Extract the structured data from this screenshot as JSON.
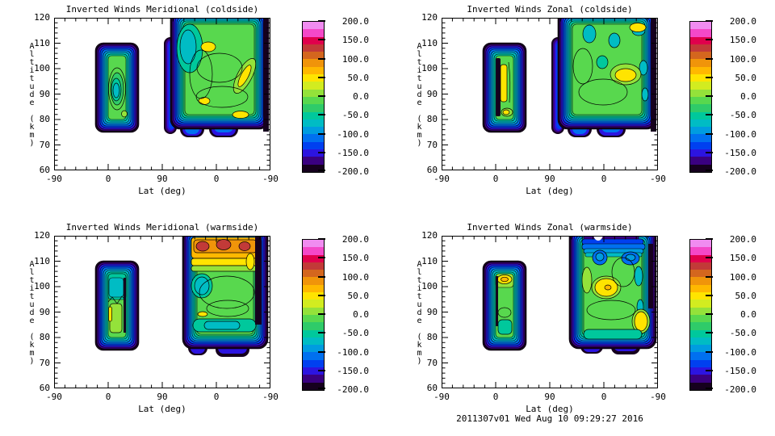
{
  "panels": [
    {
      "title": "Inverted Winds Meridional (coldside)"
    },
    {
      "title": "Inverted Winds Zonal (coldside)"
    },
    {
      "title": "Inverted Winds Meridional (warmside)"
    },
    {
      "title": "Inverted Winds Zonal (warmside)"
    }
  ],
  "axes": {
    "xlabel": "Lat (deg)",
    "ylabel": "Altitude (km)",
    "xticks": [
      "-90",
      "0",
      "90",
      "0",
      "-90"
    ],
    "yticks": [
      "120",
      "110",
      "100",
      "90",
      "80",
      "70",
      "60"
    ]
  },
  "colorbar": {
    "ticks": [
      "200.0",
      "150.0",
      "100.0",
      "50.0",
      "0.0",
      "-50.0",
      "-100.0",
      "-150.0",
      "-200.0"
    ],
    "min": -200,
    "max": 200,
    "palette_bottom_to_top": [
      "#16001E",
      "#3A0080",
      "#2C14E0",
      "#0040F0",
      "#0070F0",
      "#009CE0",
      "#00BCC4",
      "#00C89C",
      "#2FCB69",
      "#58D84E",
      "#94E23A",
      "#D2EC20",
      "#FFE400",
      "#FFB800",
      "#F0940A",
      "#D4661E",
      "#C23A38",
      "#E0004C",
      "#F448C8",
      "#F08CF0"
    ]
  },
  "footer": {
    "timestamp": "2011307v01 Wed Aug 10 09:29:27 2016"
  },
  "chart_data": [
    {
      "type": "contour",
      "title": "Inverted Winds Meridional (coldside)",
      "xlabel": "Lat (deg)",
      "ylabel": "Altitude (km)",
      "x_tick_labels": [
        -90,
        0,
        90,
        0,
        -90
      ],
      "ylim": [
        60,
        120
      ],
      "levels_min": -200,
      "levels_max": 200,
      "level_step": 20,
      "colorbar_ticks": [
        200,
        150,
        100,
        50,
        0,
        -50,
        -100,
        -150,
        -200
      ],
      "regions": [
        {
          "name": "ascending-leg swath",
          "lat_span": "-10 to 50",
          "alt_span": [
            75,
            110
          ],
          "interior_value_est": "-30 to -10",
          "features": [
            "cyan core -80 to -50 near 88-95 km",
            "edge bands falling to below -180"
          ]
        },
        {
          "name": "poleward/descending swath",
          "lat_span": "80 (asc) through 90 to -60 (desc)",
          "alt_span": [
            74,
            120
          ],
          "interior_value_est": "-30 to +10",
          "features": [
            "cyan pocket -70 to -40 upper-left",
            "yellow patches +30 to +60 near 105-110 km and 85-95 km",
            "near -200 dark band at right edge"
          ]
        }
      ]
    },
    {
      "type": "contour",
      "title": "Inverted Winds Zonal (coldside)",
      "xlabel": "Lat (deg)",
      "ylabel": "Altitude (km)",
      "x_tick_labels": [
        -90,
        0,
        90,
        0,
        -90
      ],
      "ylim": [
        60,
        120
      ],
      "levels_min": -200,
      "levels_max": 200,
      "level_step": 20,
      "colorbar_ticks": [
        200,
        150,
        100,
        50,
        0,
        -50,
        -100,
        -150,
        -200
      ],
      "regions": [
        {
          "name": "ascending-leg swath",
          "lat_span": "-10 to 50",
          "alt_span": [
            75,
            110
          ],
          "interior_value_est": "-20 to +10",
          "features": [
            "near -200 black strip on left edge",
            "yellow vertical strip +30 to +60 at 82-100 km",
            "yellow spot +30 to +60 near 82 km"
          ]
        },
        {
          "name": "poleward/descending swath",
          "lat_span": "80 (asc) through 90 to -60 (desc)",
          "alt_span": [
            74,
            120
          ],
          "interior_value_est": "-30 to +10",
          "features": [
            "scattered cyan pockets -70 to -40 above 105 km",
            "yellow patch +30 to +60 near 95-100 km",
            "yellow patch near 115 km"
          ]
        }
      ]
    },
    {
      "type": "contour",
      "title": "Inverted Winds Meridional (warmside)",
      "xlabel": "Lat (deg)",
      "ylabel": "Altitude (km)",
      "x_tick_labels": [
        -90,
        0,
        90,
        0,
        -90
      ],
      "ylim": [
        60,
        120
      ],
      "levels_min": -200,
      "levels_max": 200,
      "level_step": 20,
      "colorbar_ticks": [
        200,
        150,
        100,
        50,
        0,
        -50,
        -100,
        -150,
        -200
      ],
      "regions": [
        {
          "name": "ascending-leg swath",
          "lat_span": "-10 to 45",
          "alt_span": [
            78,
            110
          ],
          "interior_value_est": "-40 to +10",
          "features": [
            "teal/cyan upper interior -60 to -30",
            "yellow sliver +30 to +50 on left near 86-95 km"
          ]
        },
        {
          "name": "poleward/descending swath",
          "lat_span": "75 (asc) through 90 to -60 (desc)",
          "alt_span": [
            74,
            120
          ],
          "interior_value_est": "-30 to +20",
          "features": [
            "orange/amber band +70 to +120 at 112-120 km with dark-red cores +120 to +150",
            "yellow band +40 to +70 near 110 km",
            "cyan oval -70 to -50 near 100 km",
            "teal band -50 to -30 near 80-85 km"
          ]
        }
      ]
    },
    {
      "type": "contour",
      "title": "Inverted Winds Zonal (warmside)",
      "xlabel": "Lat (deg)",
      "ylabel": "Altitude (km)",
      "x_tick_labels": [
        -90,
        0,
        90,
        0,
        -90
      ],
      "ylim": [
        60,
        120
      ],
      "levels_min": -200,
      "levels_max": 200,
      "level_step": 20,
      "colorbar_ticks": [
        200,
        150,
        100,
        50,
        0,
        -50,
        -100,
        -150,
        -200
      ],
      "regions": [
        {
          "name": "ascending-leg swath",
          "lat_span": "-10 to 45",
          "alt_span": [
            78,
            110
          ],
          "interior_value_est": "-20 to +10",
          "features": [
            "yellow/amber patch +40 to +90 near 100-106 km",
            "teal pocket -50 to -30 near 82-86 km"
          ]
        },
        {
          "name": "poleward/descending swath",
          "lat_span": "75 (asc) through 90 to -60 (desc)",
          "alt_span": [
            74,
            120
          ],
          "interior_value_est": "-30 to +10",
          "features": [
            "blue/cyan bands -120 to -60 dipping down at 112-120 km",
            "yellow patch +30 to +60 with orange core near 95-100 km",
            "yellow patch +30 to +60 bottom-right near 80-88 km",
            "cyan strips -70 to -40 on right side"
          ]
        }
      ]
    }
  ]
}
